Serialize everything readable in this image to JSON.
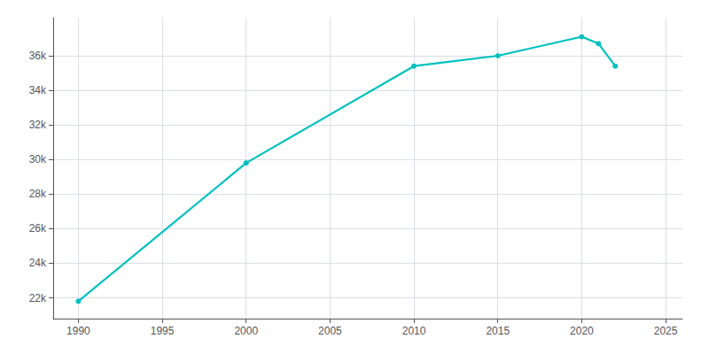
{
  "chart_data": {
    "type": "line",
    "x": [
      1990,
      2000,
      2010,
      2015,
      2020,
      2021,
      2022
    ],
    "values": [
      21800,
      29800,
      35400,
      36000,
      37100,
      36700,
      35400
    ],
    "color": "#00c0c0",
    "marker": "circle",
    "xlim": [
      1988.5,
      2026
    ],
    "xticks": [
      1990,
      1995,
      2000,
      2005,
      2010,
      2015,
      2020,
      2025
    ],
    "ylim": [
      20800,
      38200
    ],
    "yticks": [
      {
        "value": 22000,
        "label": "22k"
      },
      {
        "value": 24000,
        "label": "24k"
      },
      {
        "value": 26000,
        "label": "26k"
      },
      {
        "value": 28000,
        "label": "28k"
      },
      {
        "value": 30000,
        "label": "30k"
      },
      {
        "value": 32000,
        "label": "32k"
      },
      {
        "value": 34000,
        "label": "34k"
      },
      {
        "value": 36000,
        "label": "36k"
      }
    ],
    "grid": true
  }
}
